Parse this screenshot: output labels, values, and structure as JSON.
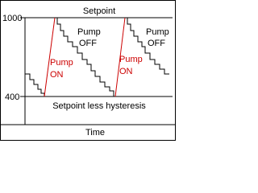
{
  "axis": {
    "top_label": "1000",
    "bottom_label": "400",
    "x_label": "Time"
  },
  "lines": {
    "setpoint": "Setpoint",
    "lower": "Setpoint less hysteresis"
  },
  "annotations": [
    {
      "lines": [
        "Pump",
        "ON"
      ]
    },
    {
      "lines": [
        "Pump",
        "OFF"
      ]
    },
    {
      "lines": [
        "Pump",
        "ON"
      ]
    },
    {
      "lines": [
        "Pump",
        "OFF"
      ]
    }
  ]
}
